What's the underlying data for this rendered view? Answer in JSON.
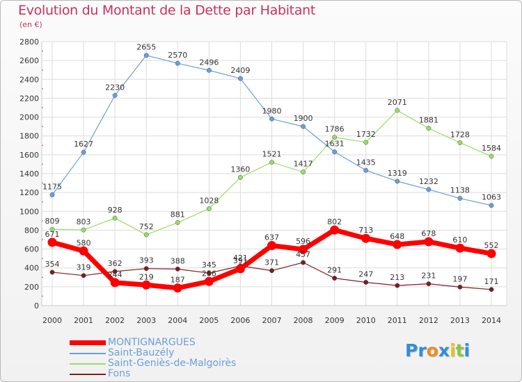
{
  "title": "Evolution du Montant de la Dette par Habitant",
  "unit": "(en €)",
  "logo": {
    "text": "Proxiti",
    "letter_colors": [
      "#2f8ed8",
      "#2f8ed8",
      "#f08c1e",
      "#2f8ed8",
      "#e8c21e",
      "#8cc63f",
      "#2f8ed8"
    ]
  },
  "chart_data": {
    "type": "line",
    "x": [
      "2000",
      "2001",
      "2002",
      "2003",
      "2004",
      "2005",
      "2006",
      "2007",
      "2008",
      "2009",
      "2010",
      "2011",
      "2012",
      "2013",
      "2014"
    ],
    "ylim": [
      0,
      2800
    ],
    "yticks": [
      "0",
      "200",
      "400",
      "600",
      "800",
      "1000",
      "1200",
      "1400",
      "1600",
      "1800",
      "2000",
      "2200",
      "2400",
      "2600",
      "2800"
    ],
    "grid": true,
    "legend_position": "bottom-left",
    "series": [
      {
        "name": "MONTIGNARGUES",
        "color": "#ff0000",
        "values": [
          671,
          580,
          244,
          219,
          187,
          256,
          391,
          637,
          596,
          802,
          713,
          648,
          678,
          610,
          552
        ],
        "labels": [
          "671",
          "580",
          "244",
          "219",
          "187",
          "256",
          "391",
          "637",
          "596",
          "802",
          "713",
          "648",
          "678",
          "610",
          "552"
        ]
      },
      {
        "name": "Saint-Bauzély",
        "color": "#6a9fd8",
        "values": [
          1175,
          1627,
          2230,
          2655,
          2570,
          2496,
          2409,
          1980,
          1900,
          1631,
          1435,
          1319,
          1232,
          1138,
          1063
        ],
        "labels": [
          "1175",
          "1627",
          "2230",
          "2655",
          "2570",
          "2496",
          "2409",
          "1980",
          "1900",
          "1631",
          "1435",
          "1319",
          "1232",
          "1138",
          "1063"
        ]
      },
      {
        "name": "Saint-Geniès-de-Malgoirès",
        "color": "#99dd66",
        "values": [
          809,
          803,
          928,
          752,
          881,
          1028,
          1360,
          1521,
          1417,
          1786,
          1732,
          2071,
          1881,
          1728,
          1584
        ],
        "labels": [
          "809",
          "803",
          "928",
          "752",
          "881",
          "1028",
          "1360",
          "1521",
          "1417",
          "1786",
          "1732",
          "2071",
          "1881",
          "1728",
          "1584"
        ]
      },
      {
        "name": "Fons",
        "color": "#7a1f1f",
        "values": [
          354,
          319,
          362,
          393,
          388,
          345,
          421,
          371,
          457,
          291,
          247,
          213,
          231,
          197,
          171
        ],
        "labels": [
          "354",
          "319",
          "362",
          "393",
          "388",
          "345",
          "421",
          "371",
          "457",
          "291",
          "247",
          "213",
          "231",
          "197",
          "171"
        ]
      }
    ]
  }
}
